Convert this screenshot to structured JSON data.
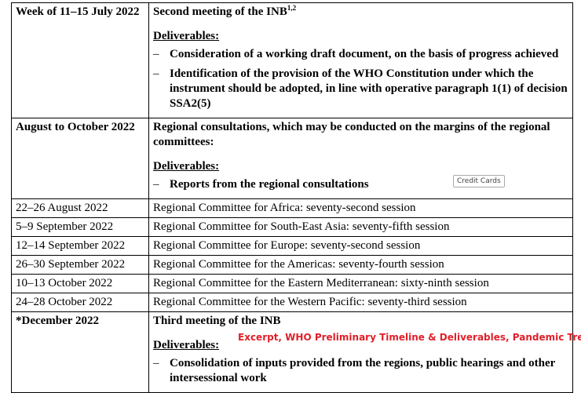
{
  "rows": [
    {
      "date": "Week of 11–15 July 2022",
      "title": "Second meeting of the INB",
      "title_sup": "1,2",
      "deliverables_label": "Deliverables:",
      "items": [
        "Consideration of a working draft document, on the basis of progress achieved",
        "Identification of the provision of the WHO Constitution under which the instrument should be adopted, in line with operative paragraph 1(1) of decision SSA2(5)"
      ]
    },
    {
      "date": "August to October 2022",
      "title": "Regional consultations, which may be conducted on the margins of the regional committees:",
      "deliverables_label": "Deliverables:",
      "items": [
        "Reports from the regional consultations"
      ]
    }
  ],
  "sessions": [
    {
      "date": "22–26 August 2022",
      "text": "Regional Committee for Africa: seventy-second session"
    },
    {
      "date": "5–9 September 2022",
      "text": "Regional Committee for South-East Asia: seventy-fifth session"
    },
    {
      "date": "12–14 September 2022",
      "text": "Regional Committee for Europe: seventy-second session"
    },
    {
      "date": "26–30 September 2022",
      "text": "Regional Committee for the Americas: seventy-fourth session"
    },
    {
      "date": "10–13 October 2022",
      "text": "Regional Committee for the Eastern Mediterranean: sixty-ninth session"
    },
    {
      "date": "24–28 October 2022",
      "text": "Regional Committee for the Western Pacific: seventy-third session"
    }
  ],
  "last_row": {
    "date": "*December 2022",
    "title": "Third meeting of the INB",
    "deliverables_label": "Deliverables:",
    "items": [
      "Consolidation of inputs provided from the regions, public hearings and other intersessional work"
    ]
  },
  "dash": "–",
  "credit_tag": "Credit Cards",
  "excerpt_caption": "Excerpt, WHO Preliminary Timeline & Deliverables, Pandemic Treaty",
  "colors": {
    "caption": "#e0202a"
  }
}
